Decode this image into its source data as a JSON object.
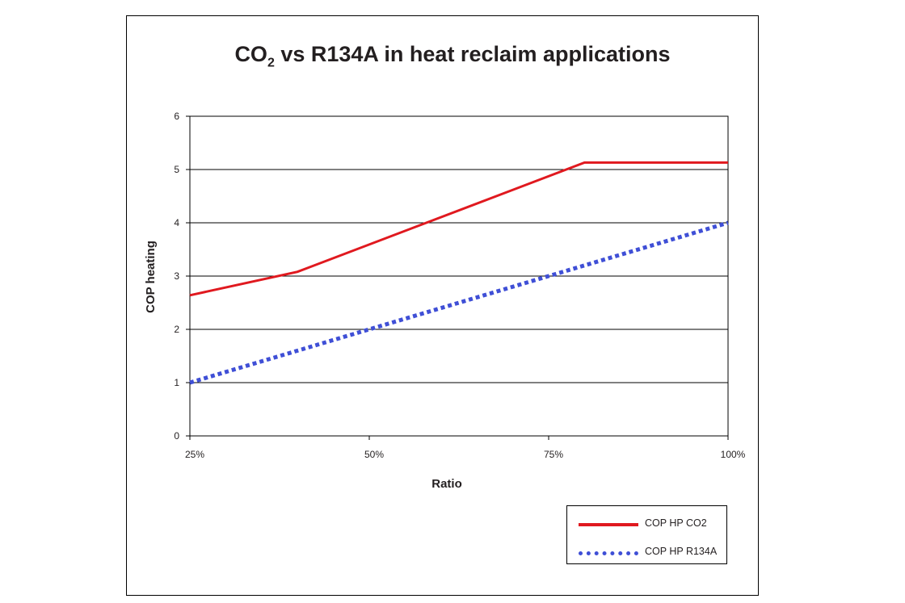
{
  "chart_data": {
    "type": "line",
    "title_main": "CO",
    "title_sub": "2",
    "title_rest": " vs R134A in heat reclaim applications",
    "xlabel": "Ratio",
    "ylabel": "COP heating",
    "x_ticks": [
      "25%",
      "50%",
      "75%",
      "100%"
    ],
    "y_ticks": [
      "0",
      "1",
      "2",
      "3",
      "4",
      "5",
      "6"
    ],
    "xlim": [
      25,
      100
    ],
    "ylim": [
      0,
      6
    ],
    "grid": "horizontal",
    "legend_position": "bottom-right",
    "series": [
      {
        "name": "COP HP CO2",
        "color": "#e0191f",
        "style": "solid",
        "x": [
          25,
          40,
          80,
          100
        ],
        "y": [
          2.64,
          3.08,
          5.13,
          5.13
        ]
      },
      {
        "name": "COP HP R134A",
        "color": "#3f4fd6",
        "style": "dashed",
        "x": [
          25,
          100
        ],
        "y": [
          1.0,
          4.0
        ]
      }
    ]
  }
}
